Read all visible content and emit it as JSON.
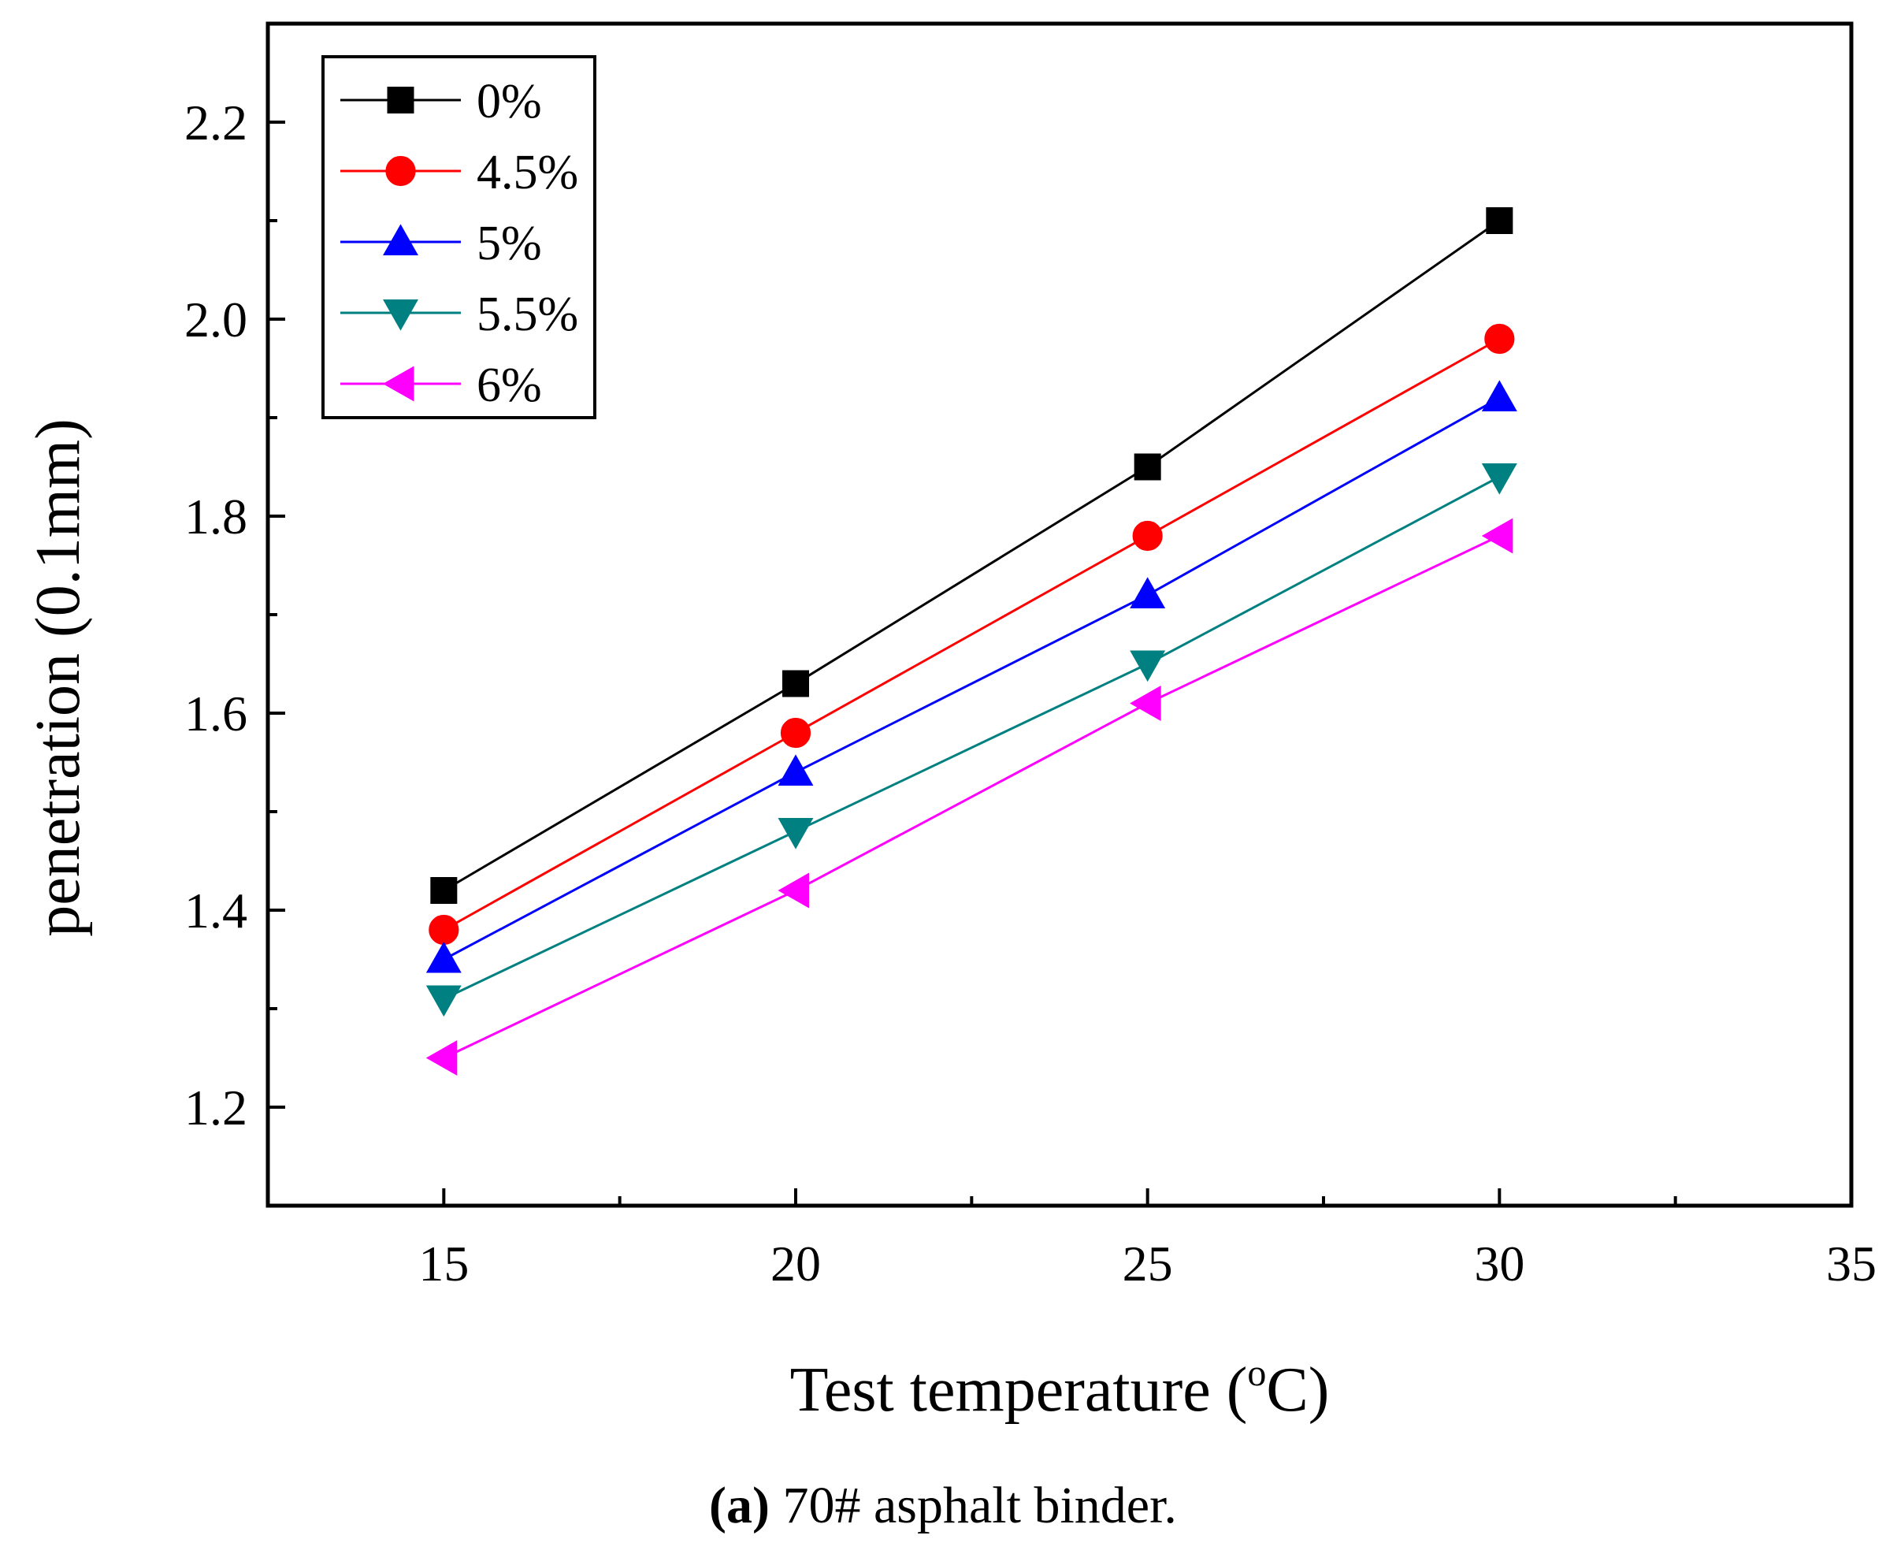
{
  "chart_data": {
    "type": "line",
    "xlabel": "Test temperature (",
    "xlabel_sup": "o",
    "xlabel_end": "C)",
    "ylabel": "penetration (0.1mm)",
    "xlim": [
      12.5,
      35
    ],
    "ylim": [
      1.1,
      2.3
    ],
    "x_ticks": [
      "15",
      "20",
      "25",
      "30",
      "35"
    ],
    "y_ticks": [
      "1.2",
      "1.4",
      "1.6",
      "1.8",
      "2.0",
      "2.2"
    ],
    "x": [
      15,
      20,
      25,
      30
    ],
    "grid": false,
    "legend_position": "top-left",
    "series": [
      {
        "name": "0%",
        "values": [
          1.42,
          1.63,
          1.85,
          2.1
        ],
        "color": "#000000",
        "marker": "square"
      },
      {
        "name": "4.5%",
        "values": [
          1.38,
          1.58,
          1.78,
          1.98
        ],
        "color": "#ff0000",
        "marker": "circle"
      },
      {
        "name": "5%",
        "values": [
          1.35,
          1.54,
          1.72,
          1.92
        ],
        "color": "#0000ff",
        "marker": "triangle-up"
      },
      {
        "name": "5.5%",
        "values": [
          1.31,
          1.48,
          1.65,
          1.84
        ],
        "color": "#008080",
        "marker": "triangle-down"
      },
      {
        "name": "6%",
        "values": [
          1.25,
          1.42,
          1.61,
          1.78
        ],
        "color": "#ff00ff",
        "marker": "triangle-left"
      }
    ]
  },
  "caption": {
    "bold": "(a)",
    "text": " 70# asphalt binder."
  }
}
